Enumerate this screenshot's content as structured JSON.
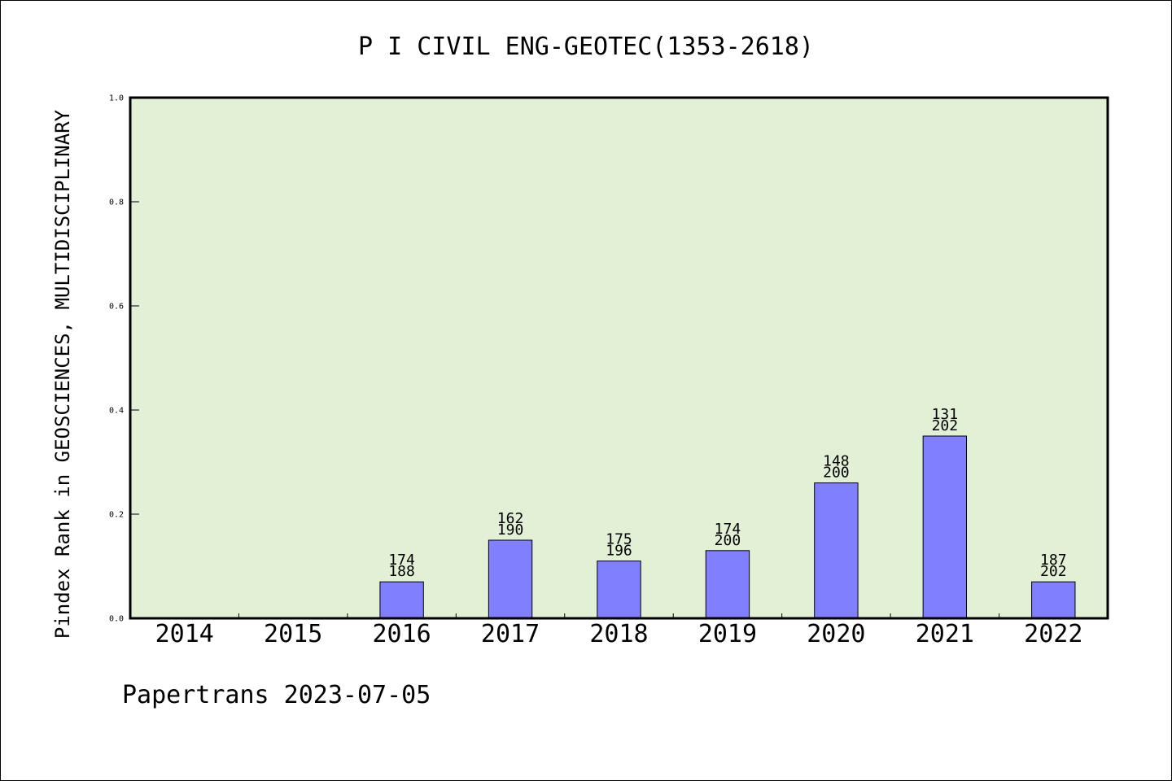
{
  "chart_data": {
    "type": "bar",
    "title": "P I CIVIL ENG-GEOTEC(1353-2618)",
    "ylabel": "Pindex Rank in GEOSCIENCES, MULTIDISCIPLINARY",
    "xlabel": "",
    "footer": "Papertrans 2023-07-05",
    "categories": [
      "2014",
      "2015",
      "2016",
      "2017",
      "2018",
      "2019",
      "2020",
      "2021",
      "2022"
    ],
    "values": [
      null,
      null,
      0.07,
      0.15,
      0.11,
      0.13,
      0.26,
      0.35,
      0.07
    ],
    "rank_labels": [
      "",
      "",
      "174",
      "162",
      "175",
      "174",
      "148",
      "131",
      "187"
    ],
    "total_labels": [
      "",
      "",
      "188",
      "190",
      "196",
      "200",
      "200",
      "202",
      "202"
    ],
    "ylim": [
      0,
      1.0
    ],
    "yticks": [
      "0.0",
      "0.2",
      "0.4",
      "0.6",
      "0.8",
      "1.0"
    ],
    "grid": false,
    "colors": {
      "plot_background": "#e2f0d6",
      "bar_fill": "#8080ff",
      "bar_stroke": "#000000"
    }
  }
}
